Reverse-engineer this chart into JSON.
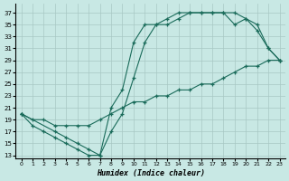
{
  "xlabel": "Humidex (Indice chaleur)",
  "xlim": [
    -0.5,
    23.5
  ],
  "ylim": [
    12.5,
    38.5
  ],
  "yticks": [
    13,
    15,
    17,
    19,
    21,
    23,
    25,
    27,
    29,
    31,
    33,
    35,
    37
  ],
  "xticks": [
    0,
    1,
    2,
    3,
    4,
    5,
    6,
    7,
    8,
    9,
    10,
    11,
    12,
    13,
    14,
    15,
    16,
    17,
    18,
    19,
    20,
    21,
    22,
    23
  ],
  "bg_color": "#c8e8e4",
  "grid_color": "#a8c8c4",
  "line_color": "#1a6b5a",
  "line1_x": [
    0,
    1,
    2,
    3,
    4,
    5,
    6,
    7,
    8,
    9,
    10,
    11,
    12,
    13,
    14,
    15,
    16,
    17,
    18,
    19,
    20,
    21,
    22,
    23
  ],
  "line1_y": [
    20,
    18,
    17,
    16,
    15,
    14,
    13,
    13,
    17,
    20,
    26,
    32,
    35,
    35,
    36,
    37,
    37,
    37,
    37,
    37,
    36,
    34,
    31,
    29
  ],
  "line2_x": [
    0,
    3,
    4,
    5,
    6,
    7,
    8,
    9,
    10,
    11,
    12,
    13,
    14,
    15,
    16,
    17,
    18,
    19,
    20,
    21,
    22,
    23
  ],
  "line2_y": [
    20,
    17,
    16,
    15,
    14,
    13,
    21,
    24,
    32,
    35,
    35,
    36,
    37,
    37,
    37,
    37,
    37,
    35,
    36,
    35,
    31,
    29
  ],
  "line3_x": [
    0,
    1,
    2,
    3,
    4,
    5,
    6,
    7,
    8,
    9,
    10,
    11,
    12,
    13,
    14,
    15,
    16,
    17,
    18,
    19,
    20,
    21,
    22,
    23
  ],
  "line3_y": [
    20,
    19,
    19,
    18,
    18,
    18,
    18,
    19,
    20,
    21,
    22,
    22,
    23,
    23,
    24,
    24,
    25,
    25,
    26,
    27,
    28,
    28,
    29,
    29
  ]
}
